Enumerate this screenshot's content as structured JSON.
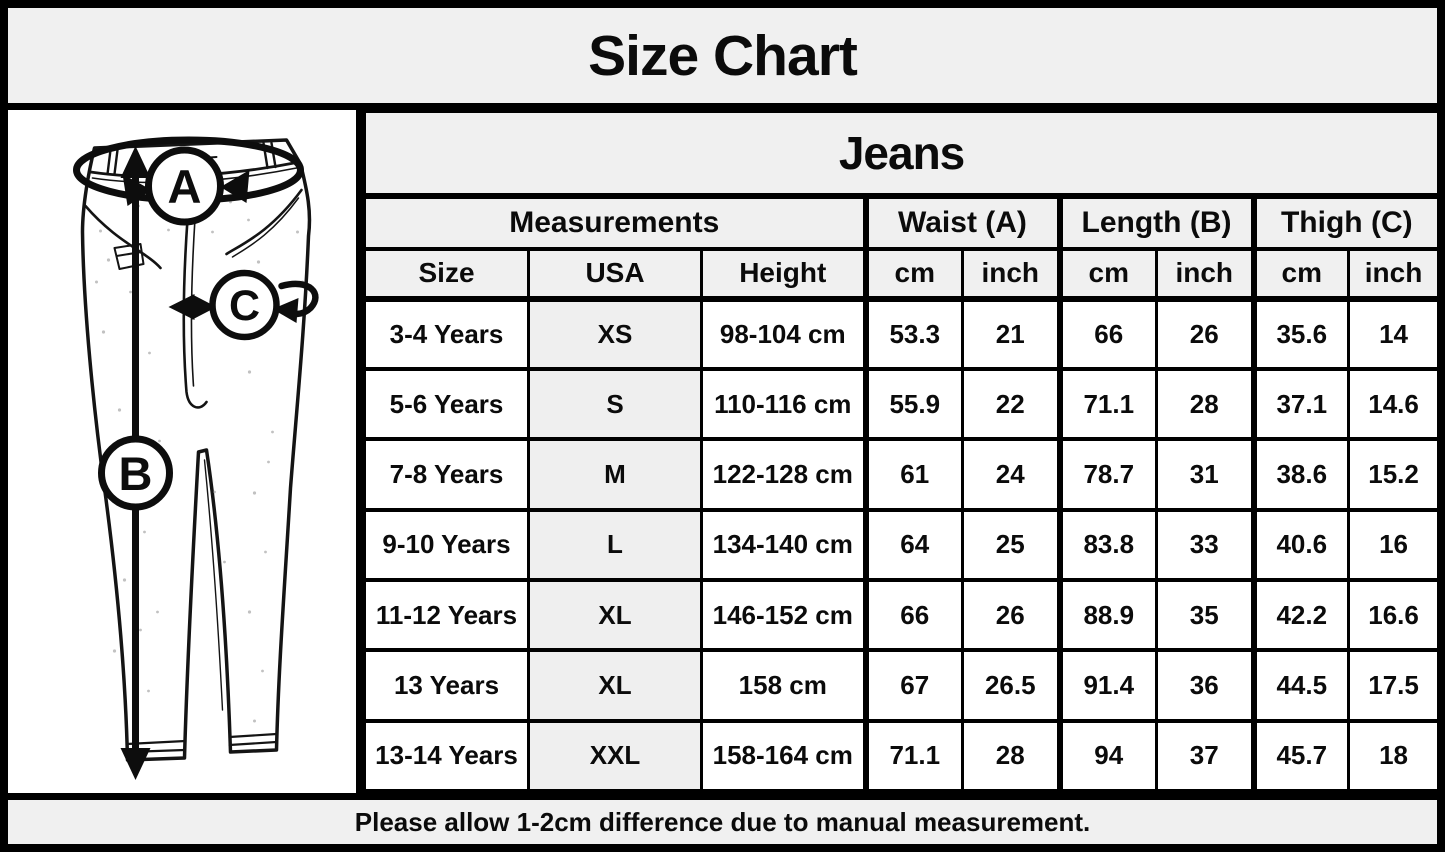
{
  "title": "Size Chart",
  "diagram": {
    "waist_label": "A",
    "length_label": "B",
    "thigh_label": "C"
  },
  "chart_data": {
    "type": "table",
    "title": "Jeans",
    "group_headers": [
      {
        "label": "Measurements",
        "span": 3
      },
      {
        "label": "Waist (A)",
        "span": 2
      },
      {
        "label": "Length (B)",
        "span": 2
      },
      {
        "label": "Thigh (C)",
        "span": 2
      }
    ],
    "columns": [
      "Size",
      "USA",
      "Height",
      "cm",
      "inch",
      "cm",
      "inch",
      "cm",
      "inch"
    ],
    "rows": [
      [
        "3-4 Years",
        "XS",
        "98-104 cm",
        "53.3",
        "21",
        "66",
        "26",
        "35.6",
        "14"
      ],
      [
        "5-6 Years",
        "S",
        "110-116 cm",
        "55.9",
        "22",
        "71.1",
        "28",
        "37.1",
        "14.6"
      ],
      [
        "7-8 Years",
        "M",
        "122-128 cm",
        "61",
        "24",
        "78.7",
        "31",
        "38.6",
        "15.2"
      ],
      [
        "9-10 Years",
        "L",
        "134-140 cm",
        "64",
        "25",
        "83.8",
        "33",
        "40.6",
        "16"
      ],
      [
        "11-12 Years",
        "XL",
        "146-152 cm",
        "66",
        "26",
        "88.9",
        "35",
        "42.2",
        "16.6"
      ],
      [
        "13 Years",
        "XL",
        "158 cm",
        "67",
        "26.5",
        "91.4",
        "36",
        "44.5",
        "17.5"
      ],
      [
        "13-14 Years",
        "XXL",
        "158-164 cm",
        "71.1",
        "28",
        "94",
        "37",
        "45.7",
        "18"
      ]
    ],
    "footnote": "Please allow 1-2cm difference due to manual measurement."
  },
  "colors": {
    "background": "#f0f0f0",
    "cell": "#ffffff",
    "shaded_cell": "#efefef",
    "border": "#000000",
    "text": "#0b0b0b"
  }
}
